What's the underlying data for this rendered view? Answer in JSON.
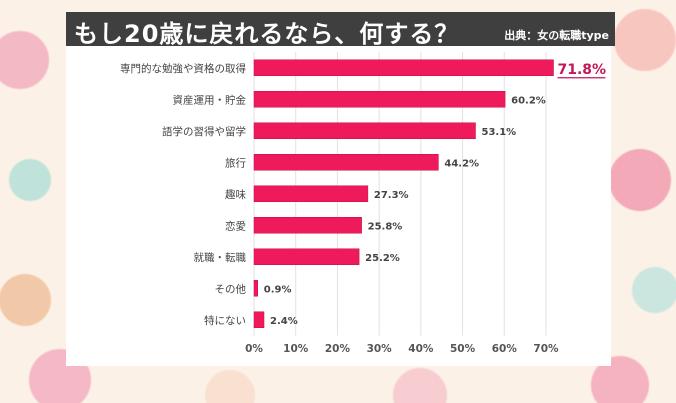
{
  "title": "もし20歳に戻れるなら、何する？",
  "source": "出典：女の転職type",
  "colors": {
    "bar": "#ee1a5c",
    "highlight_label": "#c2185b",
    "title_bg": "#3f3f3f"
  },
  "chart_data": {
    "type": "bar",
    "orientation": "horizontal",
    "title": "もし20歳に戻れるなら、何する？",
    "categories": [
      "専門的な勉強や資格の取得",
      "資産運用・貯金",
      "語学の習得や留学",
      "旅行",
      "趣味",
      "恋愛",
      "就職・転職",
      "その他",
      "特にない"
    ],
    "values": [
      71.8,
      60.2,
      53.1,
      44.2,
      27.3,
      25.8,
      25.2,
      0.9,
      2.4
    ],
    "value_labels": [
      "71.8%",
      "60.2%",
      "53.1%",
      "44.2%",
      "27.3%",
      "25.8%",
      "25.2%",
      "0.9%",
      "2.4%"
    ],
    "xticks": [
      "0%",
      "10%",
      "20%",
      "30%",
      "40%",
      "50%",
      "60%",
      "70%"
    ],
    "xlim": [
      0,
      70
    ],
    "grid": true,
    "xlabel": "",
    "ylabel": ""
  }
}
